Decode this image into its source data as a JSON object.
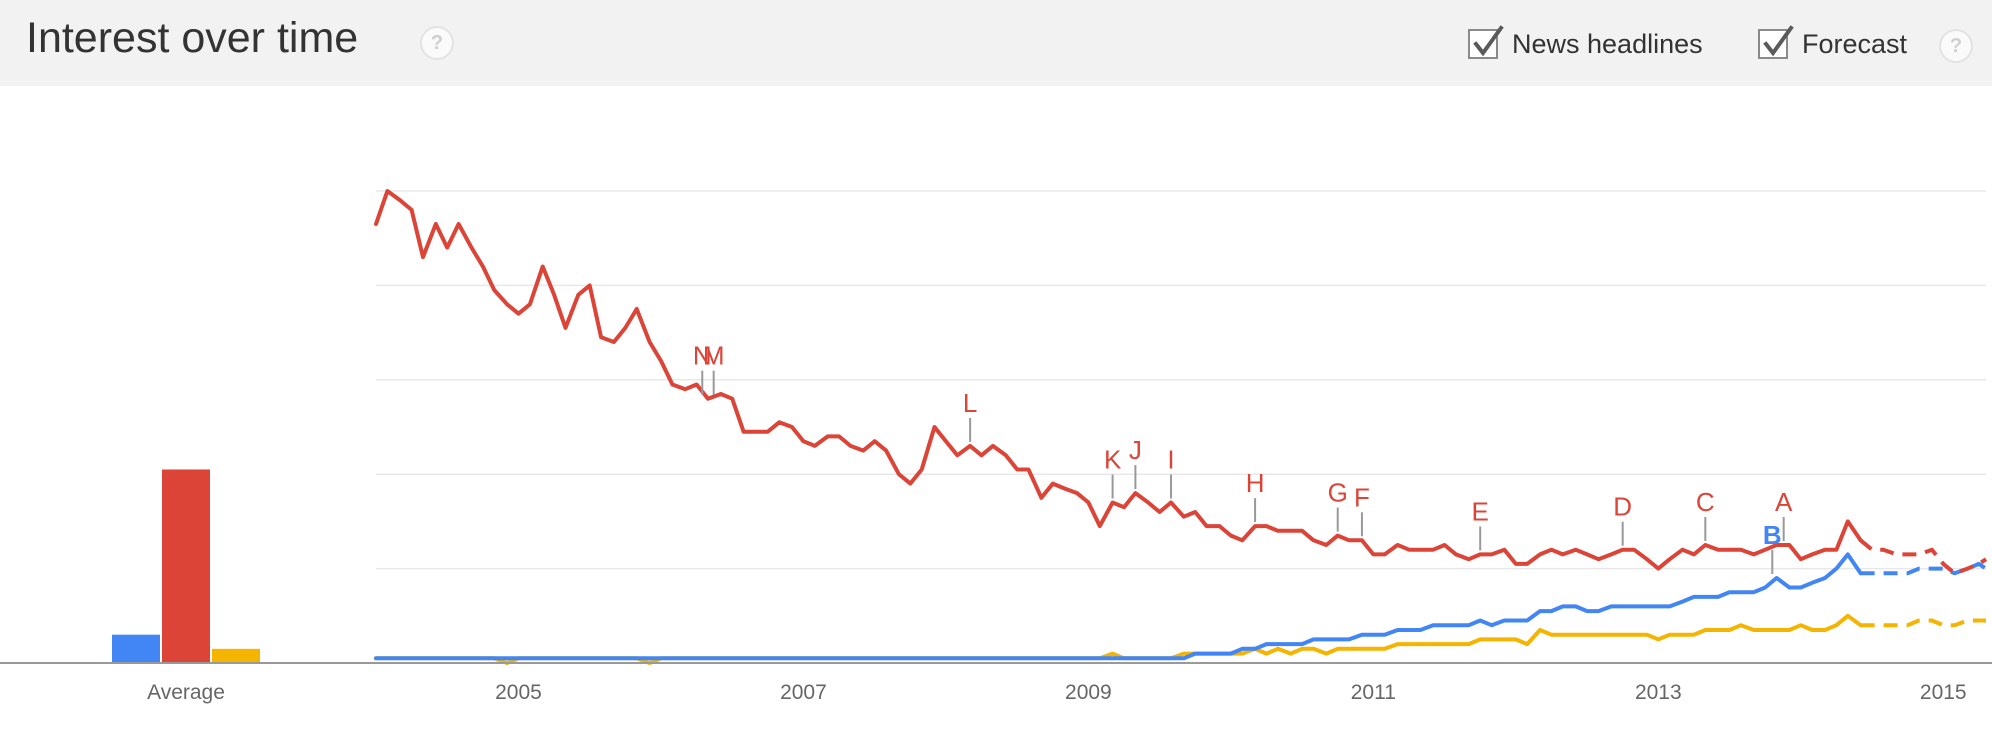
{
  "header": {
    "title": "Interest over time",
    "help_symbol": "?",
    "toggles": [
      {
        "label": "News headlines",
        "checked": true,
        "icon": "checkmark-icon"
      },
      {
        "label": "Forecast",
        "checked": true,
        "icon": "checkmark-icon"
      }
    ]
  },
  "chart_data": {
    "type": "line",
    "x_range": [
      2004.0,
      2015.3
    ],
    "y_range": [
      0,
      100
    ],
    "x_ticks": [
      "2005",
      "2007",
      "2009",
      "2011",
      "2013",
      "2015"
    ],
    "x_tick_values": [
      2005,
      2007,
      2009,
      2011,
      2013,
      2015
    ],
    "gridlines": [
      20,
      40,
      60,
      80,
      100
    ],
    "average_label": "Average",
    "colors": {
      "blue": "#4285f4",
      "red": "#db4437",
      "yellow": "#f4b400",
      "annotation_text": "#db4437",
      "annotation_stem": "#999999"
    },
    "averages": [
      {
        "color": "#4285f4",
        "value": 6
      },
      {
        "color": "#db4437",
        "value": 41
      },
      {
        "color": "#f4b400",
        "value": 3
      }
    ],
    "series": [
      {
        "color": "#db4437",
        "points": [
          [
            2004.0,
            93
          ],
          [
            2004.08,
            100
          ],
          [
            2004.17,
            98
          ],
          [
            2004.25,
            96
          ],
          [
            2004.33,
            86
          ],
          [
            2004.42,
            93
          ],
          [
            2004.5,
            88
          ],
          [
            2004.58,
            93
          ],
          [
            2004.67,
            88
          ],
          [
            2004.75,
            84
          ],
          [
            2004.83,
            79
          ],
          [
            2004.92,
            76
          ],
          [
            2005.0,
            74
          ],
          [
            2005.08,
            76
          ],
          [
            2005.17,
            84
          ],
          [
            2005.25,
            78
          ],
          [
            2005.33,
            71
          ],
          [
            2005.42,
            78
          ],
          [
            2005.5,
            80
          ],
          [
            2005.58,
            69
          ],
          [
            2005.67,
            68
          ],
          [
            2005.75,
            71
          ],
          [
            2005.83,
            75
          ],
          [
            2005.92,
            68
          ],
          [
            2006.0,
            64
          ],
          [
            2006.08,
            59
          ],
          [
            2006.17,
            58
          ],
          [
            2006.25,
            59
          ],
          [
            2006.33,
            56
          ],
          [
            2006.42,
            57
          ],
          [
            2006.5,
            56
          ],
          [
            2006.58,
            49
          ],
          [
            2006.67,
            49
          ],
          [
            2006.75,
            49
          ],
          [
            2006.83,
            51
          ],
          [
            2006.92,
            50
          ],
          [
            2007.0,
            47
          ],
          [
            2007.08,
            46
          ],
          [
            2007.17,
            48
          ],
          [
            2007.25,
            48
          ],
          [
            2007.33,
            46
          ],
          [
            2007.42,
            45
          ],
          [
            2007.5,
            47
          ],
          [
            2007.58,
            45
          ],
          [
            2007.67,
            40
          ],
          [
            2007.75,
            38
          ],
          [
            2007.83,
            41
          ],
          [
            2007.92,
            50
          ],
          [
            2008.0,
            47
          ],
          [
            2008.08,
            44
          ],
          [
            2008.17,
            46
          ],
          [
            2008.25,
            44
          ],
          [
            2008.33,
            46
          ],
          [
            2008.42,
            44
          ],
          [
            2008.5,
            41
          ],
          [
            2008.58,
            41
          ],
          [
            2008.67,
            35
          ],
          [
            2008.75,
            38
          ],
          [
            2008.83,
            37
          ],
          [
            2008.92,
            36
          ],
          [
            2009.0,
            34
          ],
          [
            2009.08,
            29
          ],
          [
            2009.17,
            34
          ],
          [
            2009.25,
            33
          ],
          [
            2009.33,
            36
          ],
          [
            2009.42,
            34
          ],
          [
            2009.5,
            32
          ],
          [
            2009.58,
            34
          ],
          [
            2009.67,
            31
          ],
          [
            2009.75,
            32
          ],
          [
            2009.83,
            29
          ],
          [
            2009.92,
            29
          ],
          [
            2010.0,
            27
          ],
          [
            2010.08,
            26
          ],
          [
            2010.17,
            29
          ],
          [
            2010.25,
            29
          ],
          [
            2010.33,
            28
          ],
          [
            2010.42,
            28
          ],
          [
            2010.5,
            28
          ],
          [
            2010.58,
            26
          ],
          [
            2010.67,
            25
          ],
          [
            2010.75,
            27
          ],
          [
            2010.83,
            26
          ],
          [
            2010.92,
            26
          ],
          [
            2011.0,
            23
          ],
          [
            2011.08,
            23
          ],
          [
            2011.17,
            25
          ],
          [
            2011.25,
            24
          ],
          [
            2011.33,
            24
          ],
          [
            2011.42,
            24
          ],
          [
            2011.5,
            25
          ],
          [
            2011.58,
            23
          ],
          [
            2011.67,
            22
          ],
          [
            2011.75,
            23
          ],
          [
            2011.83,
            23
          ],
          [
            2011.92,
            24
          ],
          [
            2012.0,
            21
          ],
          [
            2012.08,
            21
          ],
          [
            2012.17,
            23
          ],
          [
            2012.25,
            24
          ],
          [
            2012.33,
            23
          ],
          [
            2012.42,
            24
          ],
          [
            2012.5,
            23
          ],
          [
            2012.58,
            22
          ],
          [
            2012.67,
            23
          ],
          [
            2012.75,
            24
          ],
          [
            2012.83,
            24
          ],
          [
            2012.92,
            22
          ],
          [
            2013.0,
            20
          ],
          [
            2013.08,
            22
          ],
          [
            2013.17,
            24
          ],
          [
            2013.25,
            23
          ],
          [
            2013.33,
            25
          ],
          [
            2013.42,
            24
          ],
          [
            2013.5,
            24
          ],
          [
            2013.58,
            24
          ],
          [
            2013.67,
            23
          ],
          [
            2013.75,
            24
          ],
          [
            2013.83,
            25
          ],
          [
            2013.92,
            25
          ],
          [
            2014.0,
            22
          ],
          [
            2014.08,
            23
          ],
          [
            2014.17,
            24
          ],
          [
            2014.25,
            24
          ],
          [
            2014.33,
            30
          ],
          [
            2014.42,
            26
          ]
        ],
        "forecast": [
          [
            2014.42,
            26
          ],
          [
            2014.5,
            24
          ],
          [
            2014.58,
            24
          ],
          [
            2014.67,
            23
          ],
          [
            2014.75,
            23
          ],
          [
            2014.83,
            23
          ],
          [
            2014.92,
            24
          ],
          [
            2015.0,
            21
          ],
          [
            2015.08,
            19
          ],
          [
            2015.17,
            20
          ],
          [
            2015.25,
            21
          ],
          [
            2015.3,
            22
          ]
        ]
      },
      {
        "color": "#4285f4",
        "points": [
          [
            2004.0,
            1
          ],
          [
            2009.5,
            1
          ],
          [
            2009.67,
            1
          ],
          [
            2009.75,
            2
          ],
          [
            2009.92,
            2
          ],
          [
            2010.0,
            2
          ],
          [
            2010.08,
            3
          ],
          [
            2010.17,
            3
          ],
          [
            2010.25,
            4
          ],
          [
            2010.33,
            4
          ],
          [
            2010.42,
            4
          ],
          [
            2010.5,
            4
          ],
          [
            2010.58,
            5
          ],
          [
            2010.67,
            5
          ],
          [
            2010.75,
            5
          ],
          [
            2010.83,
            5
          ],
          [
            2010.92,
            6
          ],
          [
            2011.0,
            6
          ],
          [
            2011.08,
            6
          ],
          [
            2011.17,
            7
          ],
          [
            2011.25,
            7
          ],
          [
            2011.33,
            7
          ],
          [
            2011.42,
            8
          ],
          [
            2011.5,
            8
          ],
          [
            2011.58,
            8
          ],
          [
            2011.67,
            8
          ],
          [
            2011.75,
            9
          ],
          [
            2011.83,
            8
          ],
          [
            2011.92,
            9
          ],
          [
            2012.0,
            9
          ],
          [
            2012.08,
            9
          ],
          [
            2012.17,
            11
          ],
          [
            2012.25,
            11
          ],
          [
            2012.33,
            12
          ],
          [
            2012.42,
            12
          ],
          [
            2012.5,
            11
          ],
          [
            2012.58,
            11
          ],
          [
            2012.67,
            12
          ],
          [
            2012.75,
            12
          ],
          [
            2012.83,
            12
          ],
          [
            2012.92,
            12
          ],
          [
            2013.0,
            12
          ],
          [
            2013.08,
            12
          ],
          [
            2013.17,
            13
          ],
          [
            2013.25,
            14
          ],
          [
            2013.33,
            14
          ],
          [
            2013.42,
            14
          ],
          [
            2013.5,
            15
          ],
          [
            2013.58,
            15
          ],
          [
            2013.67,
            15
          ],
          [
            2013.75,
            16
          ],
          [
            2013.83,
            18
          ],
          [
            2013.92,
            16
          ],
          [
            2014.0,
            16
          ],
          [
            2014.08,
            17
          ],
          [
            2014.17,
            18
          ],
          [
            2014.25,
            20
          ],
          [
            2014.33,
            23
          ],
          [
            2014.42,
            19
          ]
        ],
        "forecast": [
          [
            2014.42,
            19
          ],
          [
            2014.58,
            19
          ],
          [
            2014.75,
            19
          ],
          [
            2014.83,
            20
          ],
          [
            2014.92,
            20
          ],
          [
            2015.0,
            20
          ],
          [
            2015.08,
            19
          ],
          [
            2015.17,
            20
          ],
          [
            2015.25,
            21
          ],
          [
            2015.3,
            20
          ]
        ]
      },
      {
        "color": "#f4b400",
        "points": [
          [
            2004.0,
            1
          ],
          [
            2004.83,
            1
          ],
          [
            2004.92,
            0
          ],
          [
            2005.0,
            1
          ],
          [
            2005.83,
            1
          ],
          [
            2005.92,
            0
          ],
          [
            2006.0,
            1
          ],
          [
            2009.08,
            1
          ],
          [
            2009.17,
            2
          ],
          [
            2009.25,
            1
          ],
          [
            2009.58,
            1
          ],
          [
            2009.67,
            2
          ],
          [
            2010.0,
            2
          ],
          [
            2010.08,
            2
          ],
          [
            2010.17,
            3
          ],
          [
            2010.25,
            2
          ],
          [
            2010.33,
            3
          ],
          [
            2010.42,
            2
          ],
          [
            2010.5,
            3
          ],
          [
            2010.58,
            3
          ],
          [
            2010.67,
            2
          ],
          [
            2010.75,
            3
          ],
          [
            2011.08,
            3
          ],
          [
            2011.17,
            4
          ],
          [
            2011.67,
            4
          ],
          [
            2011.75,
            5
          ],
          [
            2012.0,
            5
          ],
          [
            2012.08,
            4
          ],
          [
            2012.17,
            7
          ],
          [
            2012.25,
            6
          ],
          [
            2012.92,
            6
          ],
          [
            2013.0,
            5
          ],
          [
            2013.08,
            6
          ],
          [
            2013.25,
            6
          ],
          [
            2013.33,
            7
          ],
          [
            2013.5,
            7
          ],
          [
            2013.58,
            8
          ],
          [
            2013.67,
            7
          ],
          [
            2013.92,
            7
          ],
          [
            2014.0,
            8
          ],
          [
            2014.08,
            7
          ],
          [
            2014.17,
            7
          ],
          [
            2014.25,
            8
          ],
          [
            2014.33,
            10
          ],
          [
            2014.42,
            8
          ]
        ],
        "forecast": [
          [
            2014.42,
            8
          ],
          [
            2014.58,
            8
          ],
          [
            2014.75,
            8
          ],
          [
            2014.83,
            9
          ],
          [
            2014.92,
            9
          ],
          [
            2015.0,
            8
          ],
          [
            2015.08,
            8
          ],
          [
            2015.17,
            9
          ],
          [
            2015.3,
            9
          ]
        ]
      }
    ],
    "annotations": [
      {
        "label": "N",
        "x": 2006.29,
        "y": 56,
        "color": "#db4437"
      },
      {
        "label": "M",
        "x": 2006.37,
        "y": 56,
        "color": "#db4437"
      },
      {
        "label": "L",
        "x": 2008.17,
        "y": 46,
        "color": "#db4437"
      },
      {
        "label": "K",
        "x": 2009.17,
        "y": 34,
        "color": "#db4437"
      },
      {
        "label": "J",
        "x": 2009.33,
        "y": 36,
        "color": "#db4437"
      },
      {
        "label": "I",
        "x": 2009.58,
        "y": 34,
        "color": "#db4437"
      },
      {
        "label": "H",
        "x": 2010.17,
        "y": 29,
        "color": "#db4437"
      },
      {
        "label": "G",
        "x": 2010.75,
        "y": 27,
        "color": "#db4437"
      },
      {
        "label": "F",
        "x": 2010.92,
        "y": 26,
        "color": "#db4437"
      },
      {
        "label": "E",
        "x": 2011.75,
        "y": 23,
        "color": "#db4437"
      },
      {
        "label": "D",
        "x": 2012.75,
        "y": 24,
        "color": "#db4437"
      },
      {
        "label": "C",
        "x": 2013.33,
        "y": 25,
        "color": "#db4437"
      },
      {
        "label": "A",
        "x": 2013.88,
        "y": 25,
        "color": "#db4437"
      },
      {
        "label": "B",
        "x": 2013.8,
        "y": 18,
        "color": "#4285f4"
      }
    ]
  }
}
